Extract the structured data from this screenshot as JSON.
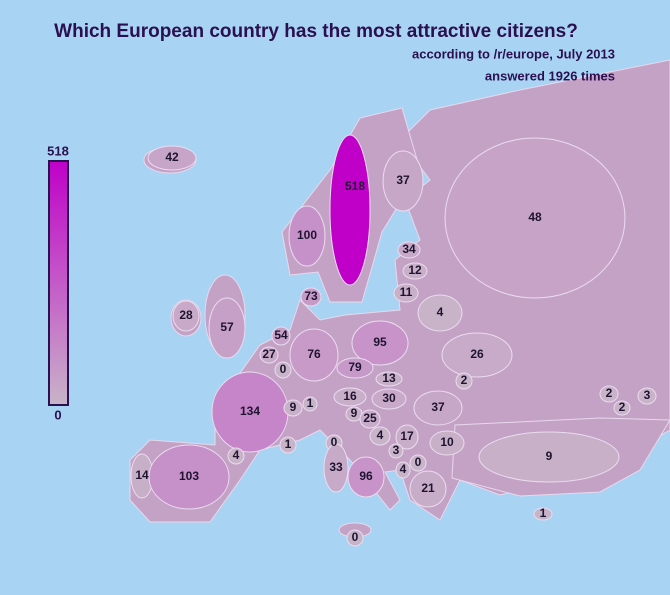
{
  "title": "Which European country has the most attractive citizens?",
  "subtitle": "according to /r/europe, July 2013",
  "note": "answered 1926 times",
  "legend": {
    "max": 518,
    "min": 0,
    "colors": [
      "#c8b4c8",
      "#c000c8"
    ]
  },
  "regions": {
    "values": [
      42,
      518,
      37,
      48,
      100,
      34,
      12,
      11,
      73,
      4,
      28,
      57,
      54,
      95,
      27,
      76,
      26,
      0,
      79,
      13,
      2,
      2,
      2,
      3,
      16,
      30,
      134,
      9,
      1,
      9,
      25,
      37,
      4,
      17,
      0,
      1,
      10,
      4,
      9,
      3,
      0,
      4,
      33,
      96,
      14,
      103,
      21,
      1,
      0
    ]
  }
}
